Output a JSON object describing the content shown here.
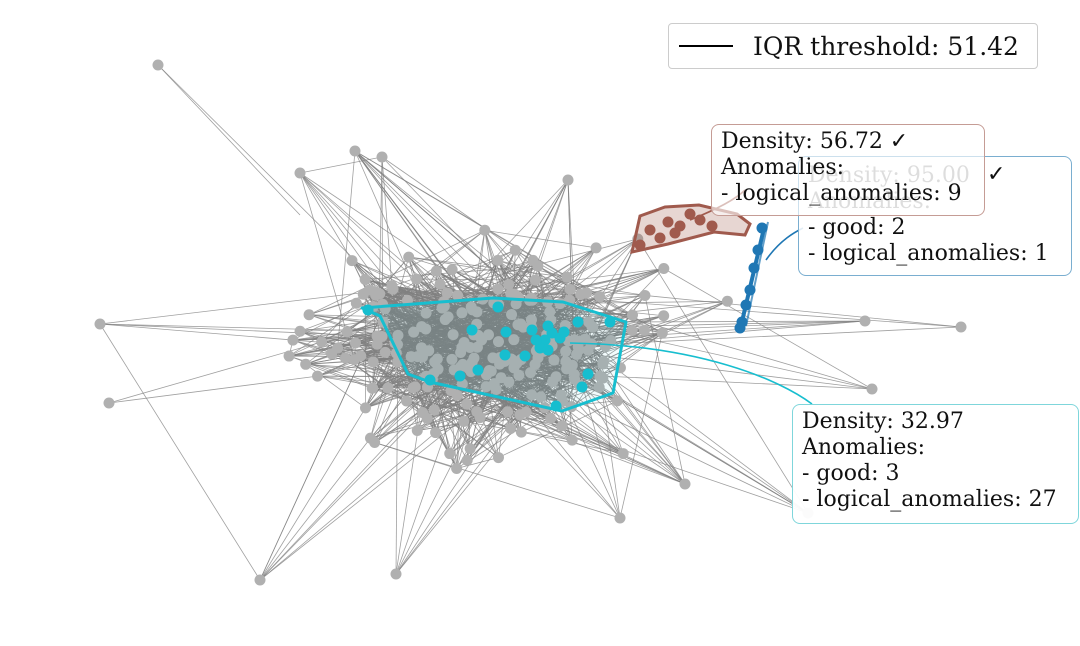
{
  "legend": {
    "label": "IQR threshold: 51.42",
    "line_color": "#000000"
  },
  "clusters": [
    {
      "id": "cyan",
      "color": "#17becf",
      "annotation": {
        "density": "Density: 32.97",
        "anomalies_label": "Anomalies:",
        "items": [
          "- good: 3",
          "- logical_anomalies: 27"
        ]
      }
    },
    {
      "id": "red",
      "color": "#a05a4d",
      "annotation": {
        "density": "Density: 56.72 ✓",
        "anomalies_label": "Anomalies:",
        "items": [
          "- logical_anomalies: 9"
        ]
      }
    },
    {
      "id": "blue",
      "color": "#1f77b4",
      "annotation": {
        "density": "Density: 95.00",
        "check": "✓",
        "anomalies_label": "Anomalies:",
        "items": [
          "- good: 2",
          "- logical_anomalies: 1"
        ]
      }
    }
  ],
  "colors": {
    "node": "#b0b0b0",
    "edge": "#808080",
    "background": "#ffffff"
  }
}
